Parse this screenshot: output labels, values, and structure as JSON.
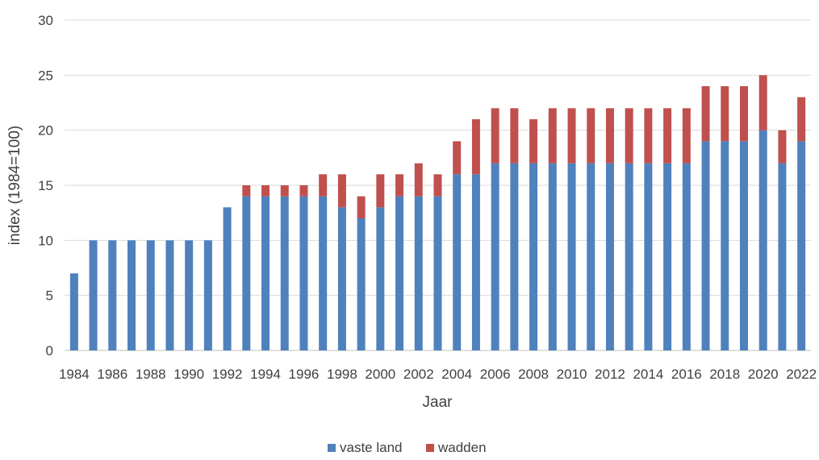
{
  "chart_data": {
    "type": "bar",
    "stacked": true,
    "xlabel": "Jaar",
    "ylabel": "index (1984=100)",
    "ylim": [
      0,
      30
    ],
    "yticks": [
      0,
      5,
      10,
      15,
      20,
      25,
      30
    ],
    "grid": true,
    "legend_position": "bottom",
    "categories": [
      "1984",
      "1985",
      "1986",
      "1987",
      "1988",
      "1989",
      "1990",
      "1991",
      "1992",
      "1993",
      "1994",
      "1995",
      "1996",
      "1997",
      "1998",
      "1999",
      "2000",
      "2001",
      "2002",
      "2003",
      "2004",
      "2005",
      "2006",
      "2007",
      "2008",
      "2009",
      "2010",
      "2011",
      "2012",
      "2013",
      "2014",
      "2015",
      "2016",
      "2017",
      "2018",
      "2019",
      "2020",
      "2021",
      "2022"
    ],
    "tick_labels": [
      "1984",
      "1986",
      "1988",
      "1990",
      "1992",
      "1994",
      "1996",
      "1998",
      "2000",
      "2002",
      "2004",
      "2006",
      "2008",
      "2010",
      "2012",
      "2014",
      "2016",
      "2018",
      "2020",
      "2022"
    ],
    "series": [
      {
        "name": "vaste land",
        "color": "#4f81bd",
        "values": [
          7,
          10,
          10,
          10,
          10,
          10,
          10,
          10,
          13,
          14,
          14,
          14,
          14,
          14,
          13,
          12,
          13,
          14,
          14,
          14,
          16,
          16,
          17,
          17,
          17,
          17,
          17,
          17,
          17,
          17,
          17,
          17,
          17,
          19,
          19,
          19,
          20,
          17,
          19
        ]
      },
      {
        "name": "wadden",
        "color": "#c0504d",
        "values": [
          0,
          0,
          0,
          0,
          0,
          0,
          0,
          0,
          0,
          1,
          1,
          1,
          1,
          2,
          3,
          2,
          3,
          2,
          3,
          2,
          3,
          5,
          5,
          5,
          4,
          5,
          5,
          5,
          5,
          5,
          5,
          5,
          5,
          5,
          5,
          5,
          5,
          3,
          4
        ]
      }
    ]
  }
}
